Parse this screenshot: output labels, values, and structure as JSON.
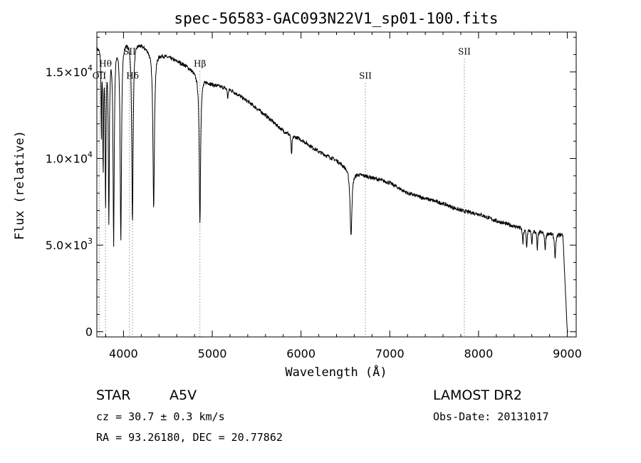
{
  "chart_data": {
    "type": "line",
    "title": "spec-56583-GAC093N22V1_sp01-100.fits",
    "xlabel": "Wavelength (Å)",
    "ylabel": "Flux (relative)",
    "xlim": [
      3700,
      9100
    ],
    "ylim": [
      -300,
      17300
    ],
    "grid": false,
    "x_ticks": [
      {
        "value": 4000,
        "label": "4000"
      },
      {
        "value": 5000,
        "label": "5000"
      },
      {
        "value": 6000,
        "label": "6000"
      },
      {
        "value": 7000,
        "label": "7000"
      },
      {
        "value": 8000,
        "label": "8000"
      },
      {
        "value": 9000,
        "label": "9000"
      }
    ],
    "y_ticks": [
      {
        "value": 0,
        "mantissa": "0",
        "exponent": ""
      },
      {
        "value": 5000,
        "mantissa": "5.0×10",
        "exponent": "3"
      },
      {
        "value": 10000,
        "mantissa": "1.0×10",
        "exponent": "4"
      },
      {
        "value": 15000,
        "mantissa": "1.5×10",
        "exponent": "4"
      }
    ],
    "continuum": [
      [
        3700,
        16500
      ],
      [
        3850,
        16800
      ],
      [
        4000,
        17000
      ],
      [
        4150,
        16800
      ],
      [
        4300,
        16300
      ],
      [
        4500,
        15900
      ],
      [
        4700,
        15400
      ],
      [
        4880,
        14700
      ],
      [
        5000,
        14300
      ],
      [
        5200,
        14000
      ],
      [
        5400,
        13300
      ],
      [
        5600,
        12500
      ],
      [
        5800,
        11600
      ],
      [
        6000,
        11100
      ],
      [
        6200,
        10400
      ],
      [
        6400,
        9900
      ],
      [
        6600,
        9200
      ],
      [
        6800,
        8900
      ],
      [
        7000,
        8600
      ],
      [
        7200,
        8000
      ],
      [
        7400,
        7700
      ],
      [
        7600,
        7400
      ],
      [
        7800,
        7000
      ],
      [
        8000,
        6800
      ],
      [
        8200,
        6400
      ],
      [
        8400,
        6100
      ],
      [
        8600,
        5900
      ],
      [
        8800,
        5700
      ],
      [
        8950,
        5600
      ],
      [
        9000,
        0
      ]
    ],
    "absorption_lines": [
      {
        "name": "Hα",
        "center": 6563,
        "depth": 3800,
        "width": 12
      },
      {
        "name": "Hβ",
        "center": 4861,
        "depth": 8500,
        "width": 9
      },
      {
        "name": "Hγ",
        "center": 4340,
        "depth": 9000,
        "width": 10
      },
      {
        "name": "Hδ",
        "center": 4101,
        "depth": 10500,
        "width": 9
      },
      {
        "name": "Hε",
        "center": 3970,
        "depth": 11500,
        "width": 9
      },
      {
        "name": "H8",
        "center": 3889,
        "depth": 11500,
        "width": 8
      },
      {
        "name": "H9",
        "center": 3835,
        "depth": 10000,
        "width": 7
      },
      {
        "name": "H10",
        "center": 3798,
        "depth": 9000,
        "width": 6
      },
      {
        "name": "H11",
        "center": 3771,
        "depth": 7000,
        "width": 5
      },
      {
        "name": "H12",
        "center": 3750,
        "depth": 5000,
        "width": 4
      },
      {
        "name": "Na D",
        "center": 5893,
        "depth": 1200,
        "width": 6
      },
      {
        "name": "Mg b",
        "center": 5175,
        "depth": 600,
        "width": 5
      },
      {
        "name": "telluric",
        "center": 8500,
        "depth": 900,
        "width": 6
      },
      {
        "name": "telluric",
        "center": 8542,
        "depth": 1100,
        "width": 6
      },
      {
        "name": "telluric",
        "center": 8600,
        "depth": 900,
        "width": 6
      },
      {
        "name": "telluric",
        "center": 8662,
        "depth": 1100,
        "width": 6
      },
      {
        "name": "telluric",
        "center": 8750,
        "depth": 1000,
        "width": 7
      },
      {
        "name": "telluric",
        "center": 8863,
        "depth": 1400,
        "width": 8
      }
    ],
    "line_markers": [
      {
        "label": "OII",
        "wavelength": 3727,
        "label_y": 14600
      },
      {
        "label": "Hθ",
        "wavelength": 3797,
        "label_y": 15300
      },
      {
        "label": "SII",
        "wavelength": 4068,
        "label_y": 16000
      },
      {
        "label": "Hδ",
        "wavelength": 4102,
        "label_y": 14600
      },
      {
        "label": "Hβ",
        "wavelength": 4861,
        "label_y": 15300
      },
      {
        "label": "SII",
        "wavelength": 6725,
        "label_y": 14600
      },
      {
        "label": "SII",
        "wavelength": 7840,
        "label_y": 16000
      }
    ]
  },
  "info": {
    "object_class": "STAR",
    "subclass": "A5V",
    "redshift": "cz = 30.7 ± 0.3 km/s",
    "coordinates": "RA =  93.26180, DEC =  20.77862",
    "survey": "LAMOST DR2",
    "obs_date": "Obs-Date: 20131017"
  }
}
